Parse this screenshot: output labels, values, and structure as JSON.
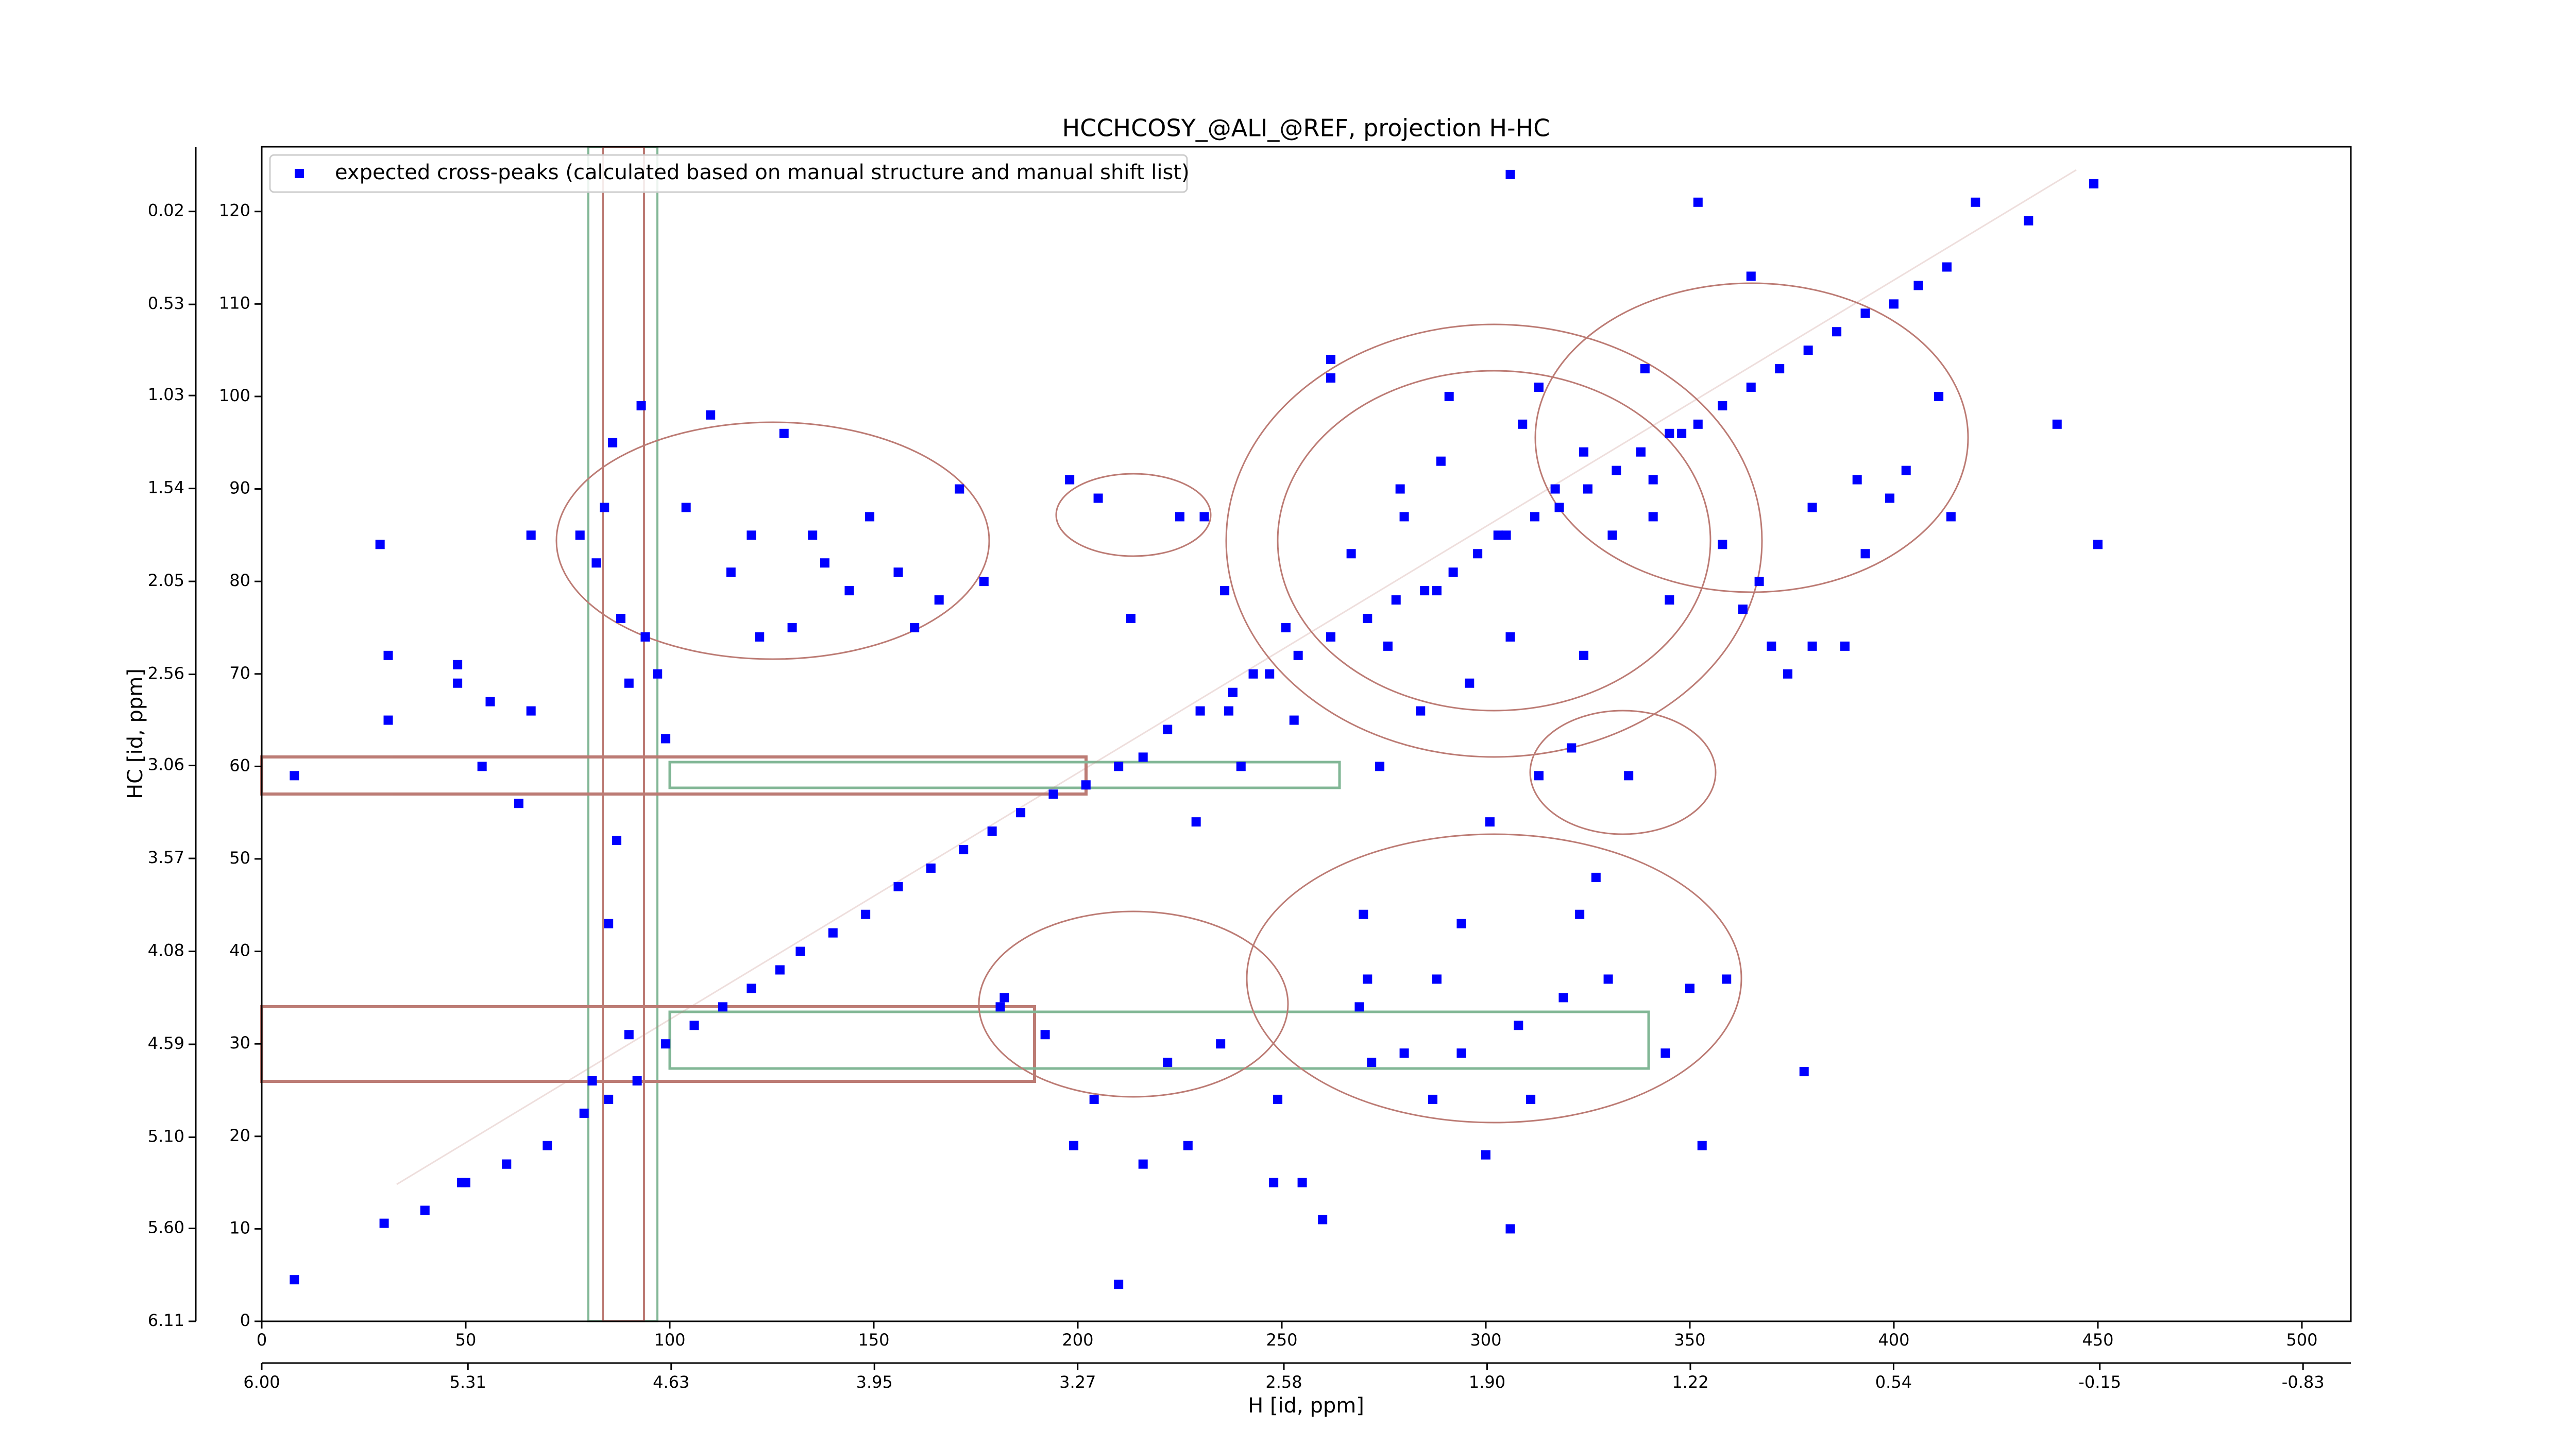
{
  "chart_data": {
    "type": "scatter",
    "title": "HCCHCOSY_@ALI_@REF, projection H-HC",
    "xlabel": "H [id, ppm]",
    "ylabel": "HC [id, ppm]",
    "xlim": [
      0,
      512
    ],
    "xticks": [
      0,
      50,
      100,
      150,
      200,
      250,
      300,
      350,
      400,
      450,
      500
    ],
    "ylim": [
      0,
      127
    ],
    "yticks": [
      0,
      10,
      20,
      30,
      40,
      50,
      60,
      70,
      80,
      90,
      100,
      110,
      120
    ],
    "x2lim": [
      6.0,
      -0.99
    ],
    "x2ticks": [
      {
        "value": 6.0,
        "label": "6.00"
      },
      5.31,
      4.63,
      3.95,
      3.27,
      2.58,
      {
        "value": 1.9,
        "label": "1.90"
      },
      1.22,
      0.54,
      -0.15,
      -0.83
    ],
    "y2lim": [
      6.11,
      -0.335
    ],
    "y2ticks": [
      6.11,
      {
        "value": 5.6,
        "label": "5.60"
      },
      {
        "value": 5.1,
        "label": "5.10"
      },
      4.59,
      4.08,
      3.57,
      3.06,
      2.56,
      2.05,
      1.54,
      1.03,
      0.53,
      0.02
    ],
    "legend": "upper left",
    "series": [
      {
        "name": "expected cross-peaks (calculated based on manual structure and manual shift list)",
        "color": "#0000ff",
        "x": [
          8,
          8,
          30,
          31,
          31,
          29,
          48,
          48,
          56,
          54,
          63,
          66,
          66,
          87,
          90,
          93,
          86,
          84,
          78,
          82,
          88,
          94,
          97,
          99,
          110,
          104,
          115,
          120,
          122,
          128,
          130,
          135,
          138,
          144,
          149,
          156,
          160,
          166,
          171,
          177,
          198,
          205,
          225,
          231,
          236,
          262,
          262,
          237,
          240,
          229,
          213,
          182,
          199,
          204,
          216,
          227,
          248,
          255,
          260,
          210,
          270,
          274,
          279,
          291,
          306,
          352,
          365,
          420,
          433,
          449,
          440,
          450,
          411,
          414,
          380,
          370,
          363,
          309,
          317,
          341,
          348,
          380,
          391,
          399,
          327,
          321,
          335,
          313,
          301,
          308,
          319,
          330,
          350,
          359,
          344,
          353,
          378,
          300,
          306,
          287,
          269,
          271,
          288,
          294,
          280,
          294,
          311,
          323,
          272,
          249,
          235,
          222,
          192,
          181,
          90,
          85,
          60,
          49,
          81,
          288,
          296,
          306,
          280,
          289,
          303,
          313,
          324,
          331,
          339,
          341,
          358,
          367,
          374,
          388,
          393,
          403,
          324,
          345,
          253,
          243,
          251,
          267,
          284,
          276,
          40,
          50,
          60,
          70,
          79,
          85,
          92,
          99,
          106,
          113,
          120,
          127,
          132,
          140,
          148,
          156,
          164,
          172,
          179,
          186,
          194,
          202,
          210,
          216,
          222,
          230,
          238,
          247,
          254,
          262,
          271,
          278,
          285,
          292,
          298,
          305,
          312,
          318,
          325,
          332,
          338,
          345,
          352,
          358,
          365,
          372,
          379,
          386,
          393,
          400,
          406,
          413
        ],
        "y": [
          59,
          4.5,
          10.6,
          72,
          65,
          84,
          71,
          69,
          67,
          60,
          56,
          66,
          85,
          52,
          69,
          99,
          95,
          88,
          85,
          82,
          76,
          74,
          70,
          63,
          98,
          88,
          81,
          85,
          74,
          96,
          75,
          85,
          82,
          79,
          87,
          81,
          75,
          78,
          90,
          80,
          91,
          89,
          87,
          87,
          79,
          104,
          102,
          66,
          60,
          54,
          76,
          35,
          19,
          24,
          17,
          19,
          15,
          15,
          11,
          4,
          44,
          60,
          90,
          100,
          124,
          121,
          113,
          121,
          119,
          123,
          97,
          84,
          100,
          87,
          73,
          73,
          77,
          97,
          90,
          91,
          96,
          88,
          91,
          89,
          48,
          62,
          59,
          59,
          54,
          32,
          35,
          37,
          36,
          37,
          29,
          19,
          27,
          18,
          10,
          24,
          34,
          37,
          37,
          43,
          29,
          29,
          24,
          44,
          28,
          24,
          30,
          28,
          31,
          34,
          31,
          43,
          17,
          15,
          26,
          79,
          69,
          74,
          87,
          93,
          85,
          101,
          94,
          85,
          103,
          87,
          84,
          80,
          70,
          73,
          83,
          92,
          72,
          78,
          65,
          70,
          75,
          83,
          66,
          73,
          12,
          15,
          17,
          19,
          22.5,
          24,
          26,
          30,
          32,
          34,
          36,
          38,
          40,
          42,
          44,
          47,
          49,
          51,
          53,
          55,
          57,
          58,
          60,
          61,
          64,
          66,
          68,
          70,
          72,
          74,
          76,
          78,
          79,
          81,
          83,
          85,
          87,
          88,
          90,
          92,
          94,
          96,
          97,
          99,
          101,
          103,
          105,
          107,
          109,
          110,
          112,
          114
        ]
      }
    ]
  }
}
